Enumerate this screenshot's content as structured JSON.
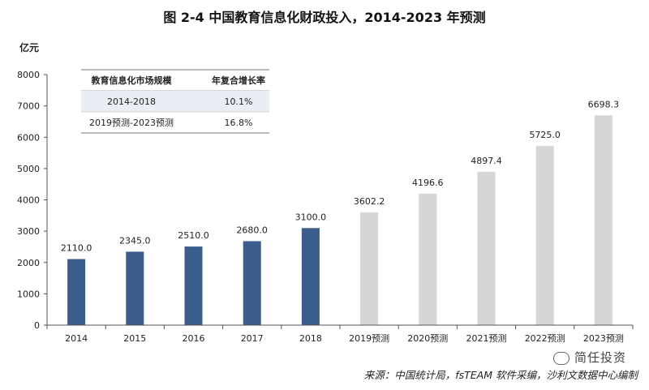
{
  "title": "图 2-4 中国教育信息化财政投入，2014-2023 年预测",
  "chart_data": {
    "type": "bar",
    "categories": [
      "2014",
      "2015",
      "2016",
      "2017",
      "2018",
      "2019预测",
      "2020预测",
      "2021预测",
      "2022预测",
      "2023预测"
    ],
    "values": [
      2110.0,
      2345.0,
      2510.0,
      2680.0,
      3100.0,
      3602.2,
      4196.6,
      4897.4,
      5725.0,
      6698.3
    ],
    "value_labels": [
      "2110.0",
      "2345.0",
      "2510.0",
      "2680.0",
      "3100.0",
      "3602.2",
      "4196.6",
      "4897.4",
      "5725.0",
      "6698.3"
    ],
    "is_forecast": [
      false,
      false,
      false,
      false,
      false,
      true,
      true,
      true,
      true,
      true
    ],
    "ylabel": "亿元",
    "xlabel": "",
    "ylim": [
      0,
      8000
    ],
    "yticks": [
      0,
      1000,
      2000,
      3000,
      4000,
      5000,
      6000,
      7000,
      8000
    ],
    "colors": {
      "actual": "#3b5d8c",
      "forecast": "#d6d6d6",
      "axis": "#555555"
    }
  },
  "cagr_table": {
    "headers": [
      "教育信息化市场规模",
      "年复合增长率"
    ],
    "rows": [
      [
        "2014-2018",
        "10.1%"
      ],
      [
        "2019预测-2023预测",
        "16.8%"
      ]
    ]
  },
  "source": "来源：中国统计局，fsTEAM 软件采编，沙利文数据中心编制",
  "watermark": "简任投资"
}
